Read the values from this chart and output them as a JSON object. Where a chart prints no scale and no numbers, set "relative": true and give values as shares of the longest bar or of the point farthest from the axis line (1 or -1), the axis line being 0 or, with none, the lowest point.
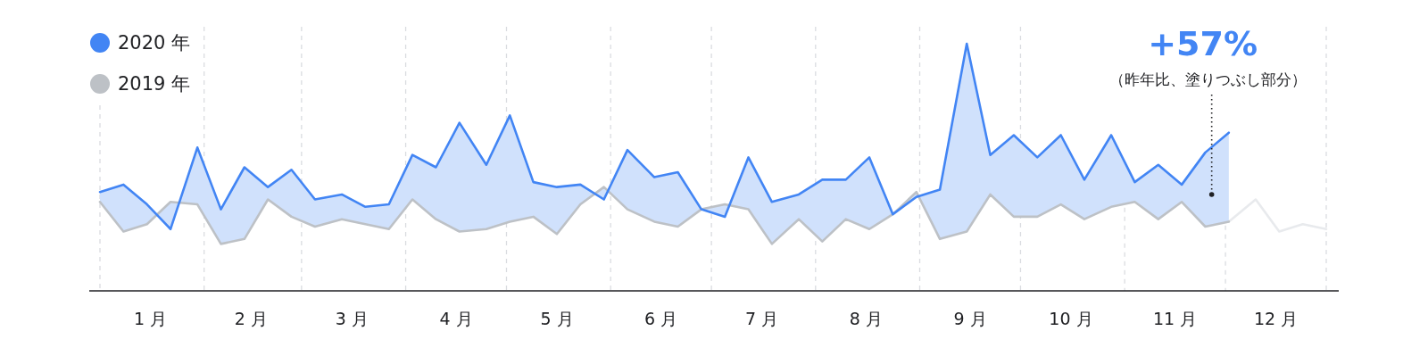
{
  "chart_data": {
    "type": "line",
    "relative": true,
    "x": [
      "--01-01",
      "--01-08",
      "--01-15",
      "--01-22",
      "--01-30",
      "--02-06",
      "--02-13",
      "--02-20",
      "--02-27",
      "--03-05",
      "--03-13",
      "--03-20",
      "--03-27",
      "--04-03",
      "--04-10",
      "--04-17",
      "--04-25",
      "--05-02",
      "--05-09",
      "--05-16",
      "--05-23",
      "--05-30",
      "--06-06",
      "--06-14",
      "--06-21",
      "--06-28",
      "--07-05",
      "--07-12",
      "--07-19",
      "--07-27",
      "--08-03",
      "--08-10",
      "--08-17",
      "--08-24",
      "--08-31",
      "--09-07",
      "--09-15",
      "--09-22",
      "--09-29",
      "--10-06",
      "--10-13",
      "--10-20",
      "--10-28",
      "--11-04",
      "--11-11",
      "--11-18",
      "--11-25",
      "--12-02"
    ],
    "series": [
      {
        "name": "2020 年",
        "color": "#4285f4",
        "values": [
          0.4,
          0.43,
          0.35,
          0.25,
          0.58,
          0.33,
          0.5,
          0.42,
          0.49,
          0.37,
          0.39,
          0.34,
          0.35,
          0.55,
          0.5,
          0.68,
          0.51,
          0.71,
          0.44,
          0.42,
          0.43,
          0.37,
          0.57,
          0.46,
          0.48,
          0.33,
          0.3,
          0.54,
          0.36,
          0.39,
          0.45,
          0.45,
          0.54,
          0.31,
          0.38,
          0.41,
          1,
          0.55,
          0.63,
          0.54,
          0.63,
          0.45,
          0.63,
          0.44,
          0.51,
          0.43,
          0.56,
          0.64
        ],
        "lower": [
          0.36,
          0.24,
          0.27,
          0.36,
          0.35,
          0.19,
          0.21,
          0.37,
          0.3,
          0.26,
          0.29,
          0.27,
          0.25,
          0.37,
          0.29,
          0.24,
          0.25,
          0.28,
          0.3,
          0.23,
          0.35,
          0.42,
          0.33,
          0.28,
          0.26,
          0.33,
          0.35,
          0.33,
          0.19,
          0.29,
          0.2,
          0.29,
          0.25,
          0.31,
          0.4,
          0.21,
          0.24,
          0.39,
          0.3,
          0.3,
          0.35,
          0.29,
          0.34,
          0.36,
          0.29,
          0.36,
          0.26,
          0.28
        ],
        "upper": [
          0.4,
          0.43,
          0.35,
          0.25,
          0.58,
          0.33,
          0.5,
          0.42,
          0.49,
          0.37,
          0.39,
          0.34,
          0.35,
          0.55,
          0.5,
          0.68,
          0.51,
          0.71,
          0.44,
          0.42,
          0.43,
          0.37,
          0.57,
          0.46,
          0.48,
          0.33,
          0.3,
          0.54,
          0.36,
          0.39,
          0.45,
          0.45,
          0.54,
          0.31,
          0.38,
          0.41,
          1,
          0.55,
          0.63,
          0.54,
          0.63,
          0.45,
          0.63,
          0.44,
          0.51,
          0.43,
          0.56,
          0.64
        ]
      },
      {
        "name": "2019 年",
        "color": "#bdc1c6",
        "values": [
          0.36,
          0.24,
          0.27,
          0.36,
          0.35,
          0.19,
          0.21,
          0.37,
          0.3,
          0.26,
          0.29,
          0.27,
          0.25,
          0.37,
          0.29,
          0.24,
          0.25,
          0.28,
          0.3,
          0.23,
          0.35,
          0.42,
          0.33,
          0.28,
          0.26,
          0.33,
          0.35,
          0.33,
          0.19,
          0.29,
          0.2,
          0.29,
          0.25,
          0.31,
          0.4,
          0.21,
          0.24,
          0.39,
          0.3,
          0.3,
          0.35,
          0.29,
          0.34,
          0.36,
          0.29,
          0.36,
          0.26,
          0.28
        ]
      },
      {
        "color": "#e8eaed",
        "x": [
          "--12-02",
          "--12-10",
          "--12-17",
          "--12-24",
          "--12-31"
        ],
        "values": [
          0.28,
          0.37,
          0.24,
          0.27,
          0.25
        ]
      }
    ],
    "xlim": [
      "--01-01",
      "--12-31"
    ],
    "xticks": [
      {
        "value": "--01-16",
        "label": "1 月"
      },
      {
        "value": "--02-15",
        "label": "2 月"
      },
      {
        "value": "--03-16",
        "label": "3 月"
      },
      {
        "value": "--04-16",
        "label": "4 月"
      },
      {
        "value": "--05-16",
        "label": "5 月"
      },
      {
        "value": "--06-16",
        "label": "6 月"
      },
      {
        "value": "--07-16",
        "label": "7 月"
      },
      {
        "value": "--08-16",
        "label": "8 月"
      },
      {
        "value": "--09-16",
        "label": "9 月"
      },
      {
        "value": "--10-16",
        "label": "10 月"
      },
      {
        "value": "--11-16",
        "label": "11 月"
      },
      {
        "value": "--12-16",
        "label": "12 月"
      }
    ],
    "ref_lines": [
      {
        "axis": "x",
        "value": "--01-01",
        "color": "#dadce0",
        "line_style": "dashed"
      },
      {
        "axis": "x",
        "value": "--02-01",
        "color": "#dadce0",
        "line_style": "dashed"
      },
      {
        "axis": "x",
        "value": "--03-01",
        "color": "#dadce0",
        "line_style": "dashed"
      },
      {
        "axis": "x",
        "value": "--04-01",
        "color": "#dadce0",
        "line_style": "dashed"
      },
      {
        "axis": "x",
        "value": "--05-01",
        "color": "#dadce0",
        "line_style": "dashed"
      },
      {
        "axis": "x",
        "value": "--06-01",
        "color": "#dadce0",
        "line_style": "dashed"
      },
      {
        "axis": "x",
        "value": "--07-01",
        "color": "#dadce0",
        "line_style": "dashed"
      },
      {
        "axis": "x",
        "value": "--08-01",
        "color": "#dadce0",
        "line_style": "dashed"
      },
      {
        "axis": "x",
        "value": "--09-01",
        "color": "#dadce0",
        "line_style": "dashed"
      },
      {
        "axis": "x",
        "value": "--10-01",
        "color": "#dadce0",
        "line_style": "dashed"
      },
      {
        "axis": "x",
        "value": "--11-01",
        "color": "#dadce0",
        "line_style": "dashed"
      },
      {
        "axis": "x",
        "value": "--12-01",
        "color": "#dadce0",
        "line_style": "dashed"
      },
      {
        "axis": "x",
        "value": "--12-31",
        "color": "#dadce0",
        "line_style": "dashed"
      }
    ],
    "annotations": [
      "+57%",
      "（昨年比、塗りつぶし部分）"
    ],
    "legend": "top left",
    "marker": "none",
    "line_style": "solid"
  }
}
